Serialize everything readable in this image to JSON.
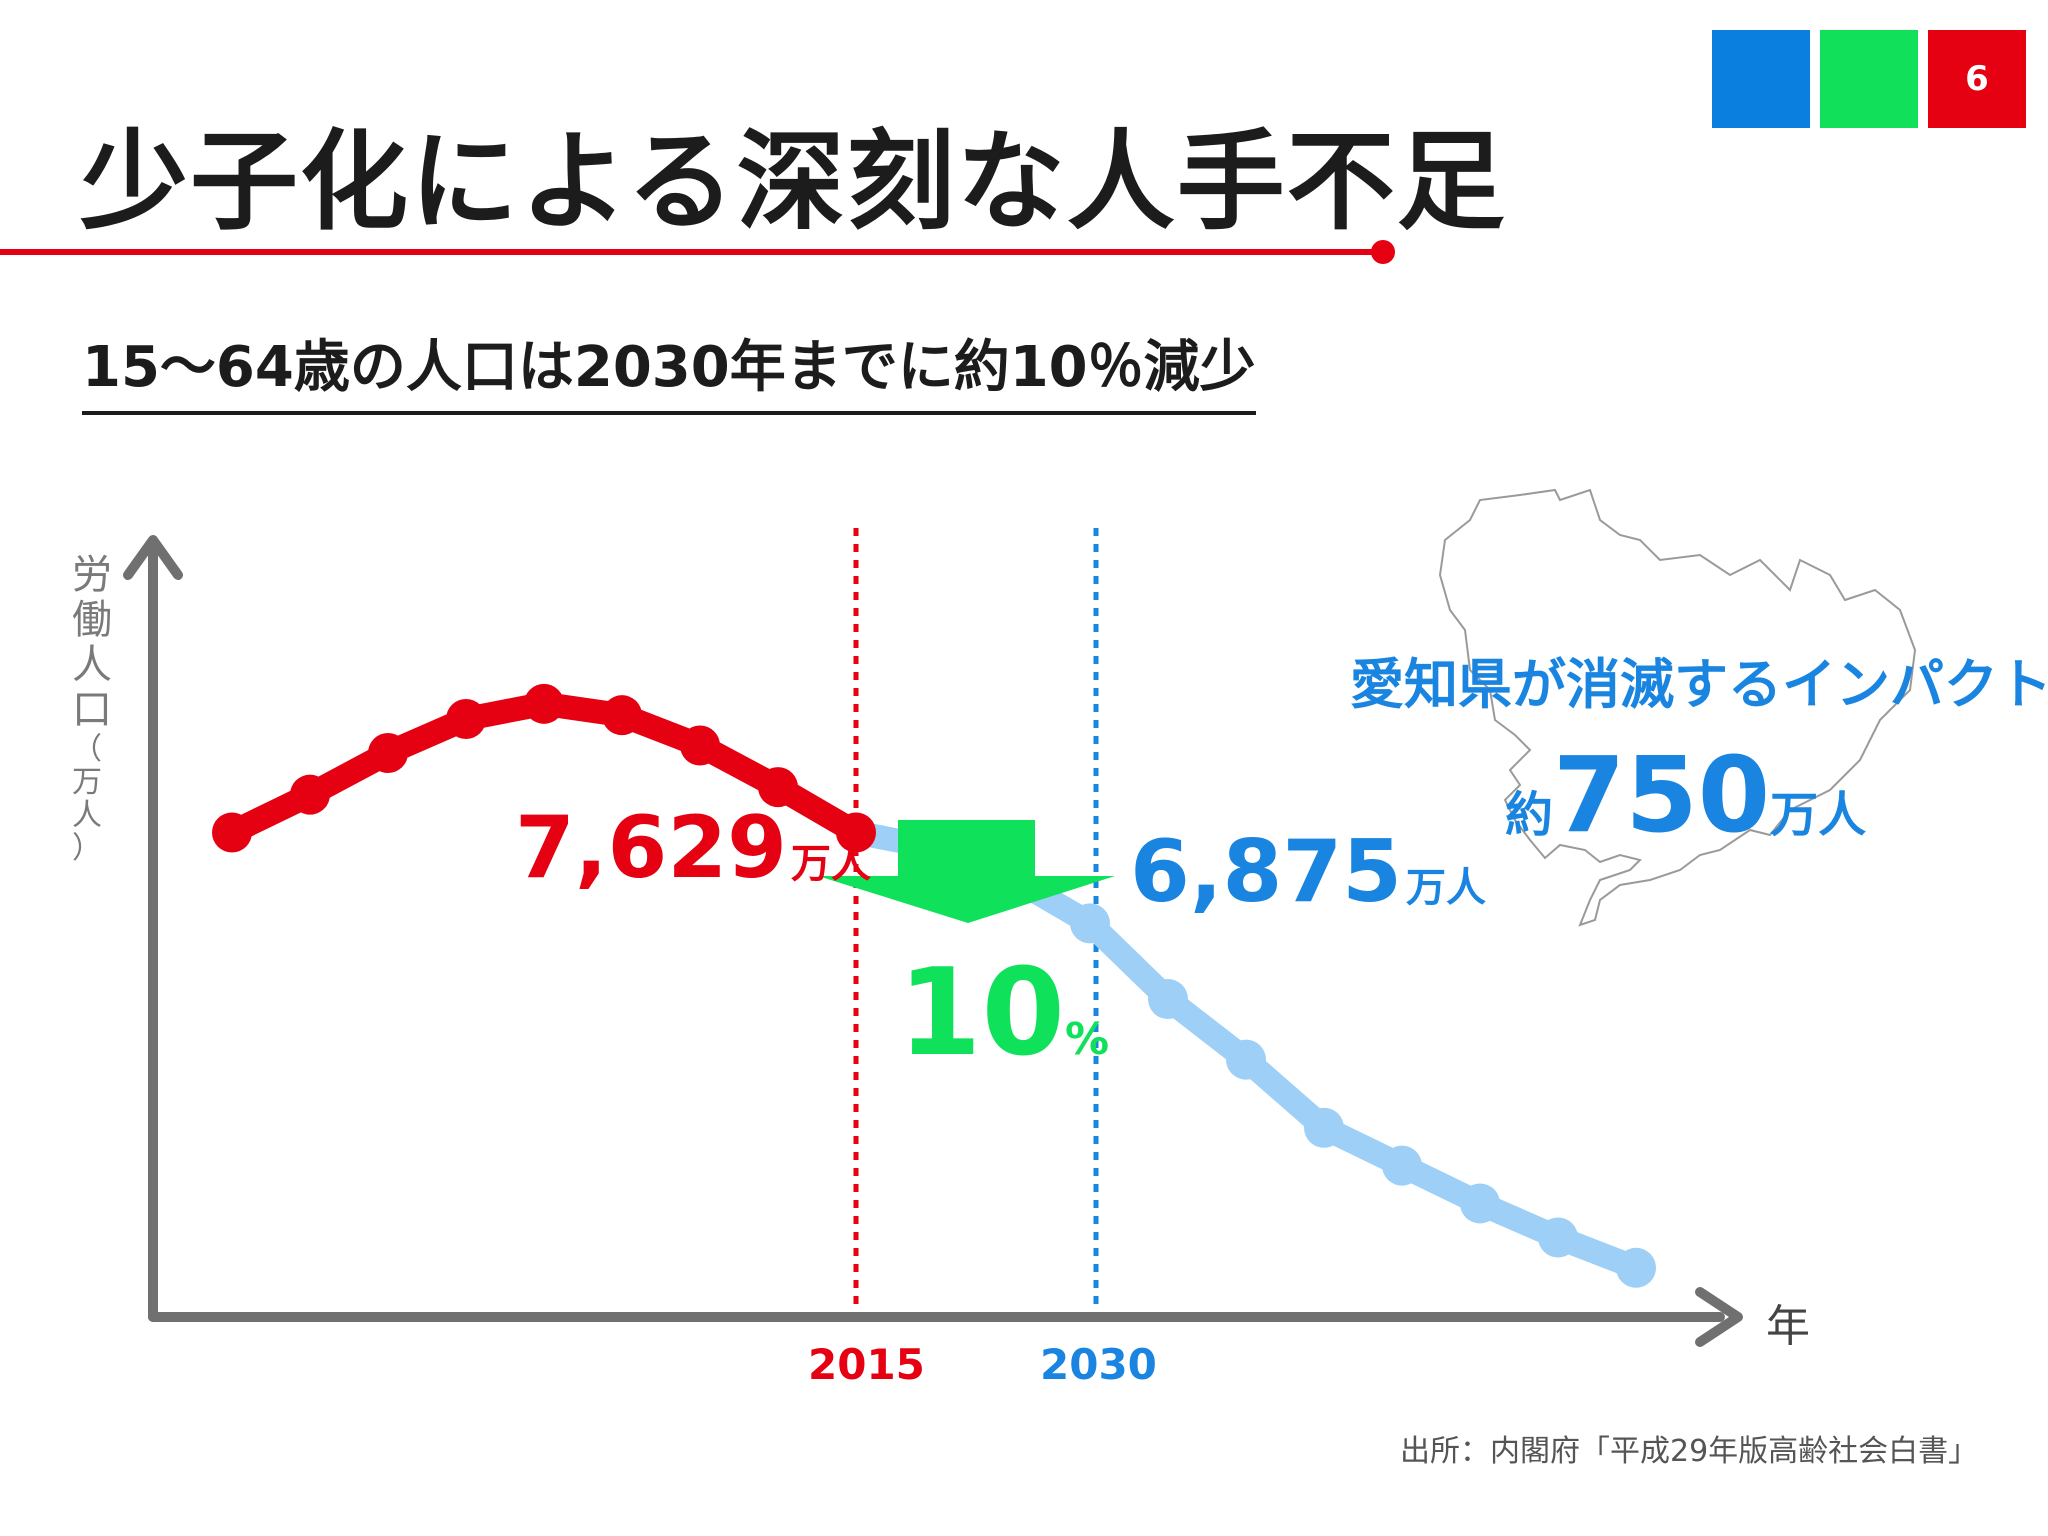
{
  "slide": {
    "title": "少子化による深刻な人手不足",
    "page_number": "6",
    "corner_colors": [
      "#0a7fe0",
      "#10e05a",
      "#e50012"
    ],
    "subtitle": "15〜64歳の人口は2030年までに約10％減少",
    "source": "出所：内閣府「平成29年版高齢社会白書」"
  },
  "chart_data": {
    "type": "line",
    "ylabel": "労働人口（万人）",
    "xlabel": "年",
    "marked_years": [
      "2015",
      "2030"
    ],
    "marked_year_colors": [
      "#e50012",
      "#1a85e0"
    ],
    "series": [
      {
        "color": "#e50012",
        "values": [
          6.4,
          6.9,
          7.45,
          7.9,
          8.1,
          7.95,
          7.55,
          7.0,
          6.4
        ]
      },
      {
        "color": "#9ed0f7",
        "values": [
          6.4,
          6.2,
          5.8,
          5.2,
          4.2,
          3.4,
          2.5,
          2.0,
          1.5,
          1.05,
          0.65
        ]
      }
    ],
    "annotations": {
      "value_2015": {
        "number": "7,629",
        "unit": "万人"
      },
      "value_2030": {
        "number": "6,875",
        "unit": "万人"
      },
      "decrease": {
        "number": "10",
        "unit": "%"
      },
      "impact_title": "愛知県が消滅するインパクト",
      "impact_value": {
        "prefix": "約",
        "number": "750",
        "unit": "万人"
      }
    }
  }
}
